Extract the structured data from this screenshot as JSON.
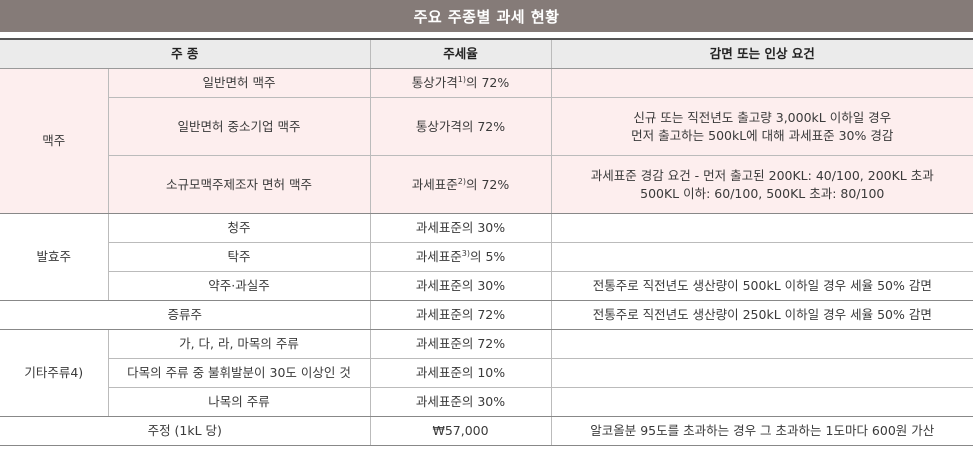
{
  "title": "주요 주종별 과세 현황",
  "headers": {
    "type": "주 종",
    "tax_rate": "주세율",
    "condition": "감면 또는 인상 요건"
  },
  "beer": {
    "group": "맥주",
    "rows": [
      {
        "name": "일반면허 맥주",
        "rate_pre": "통상가격",
        "rate_sup": "1)",
        "rate_post": "의 72%",
        "condition": ""
      },
      {
        "name": "일반면허 중소기업 맥주",
        "rate": "통상가격의 72%",
        "condition_line1": "신규 또는 직전년도 출고량 3,000kL 이하일 경우",
        "condition_line2": "먼저 출고하는 500kL에 대해 과세표준 30% 경감"
      },
      {
        "name": "소규모맥주제조자 면허 맥주",
        "rate_pre": "과세표준",
        "rate_sup": "2)",
        "rate_post": "의 72%",
        "condition_line1": "과세표준 경감 요건 - 먼저 출고된 200KL: 40/100, 200KL 초과",
        "condition_line2": "500KL 이하: 60/100, 500KL 초과: 80/100"
      }
    ]
  },
  "fermented": {
    "group": "발효주",
    "rows": [
      {
        "name": "청주",
        "rate": "과세표준의 30%",
        "condition": ""
      },
      {
        "name": "탁주",
        "rate_pre": "과세표준",
        "rate_sup": "3)",
        "rate_post": "의 5%",
        "condition": ""
      },
      {
        "name": "약주·과실주",
        "rate": "과세표준의 30%",
        "condition": "전통주로 직전년도 생산량이 500kL 이하일 경우 세율 50% 감면"
      }
    ]
  },
  "distilled": {
    "name": "증류주",
    "rate": "과세표준의 72%",
    "condition": "전통주로 직전년도 생산량이 250kL 이하일 경우 세율 50% 감면"
  },
  "other": {
    "group": "기타주류4)",
    "rows": [
      {
        "name": "가, 다, 라, 마목의 주류",
        "rate": "과세표준의 72%",
        "condition": ""
      },
      {
        "name": "다목의 주류 중 불휘발분이 30도 이상인 것",
        "rate": "과세표준의 10%",
        "condition": ""
      },
      {
        "name": "나목의 주류",
        "rate": "과세표준의 30%",
        "condition": ""
      }
    ]
  },
  "alcohol": {
    "name": "주정 (1kL 당)",
    "rate": "₩57,000",
    "condition": "알코올분 95도를 초과하는 경우 그 초과하는 1도마다 600원 가산"
  }
}
